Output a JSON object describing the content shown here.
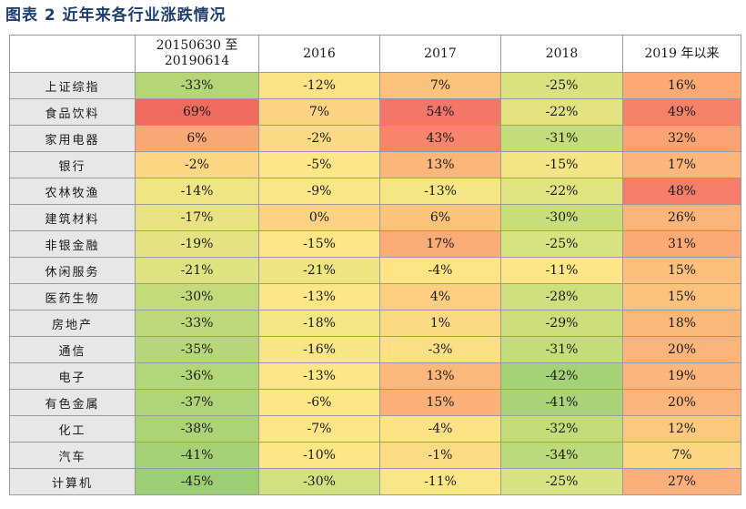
{
  "title": "图表 2  近年来各行业涨跌情况",
  "chart_data": {
    "type": "table",
    "columns": [
      "20150630 至 20190614",
      "2016",
      "2017",
      "2018",
      "2019 年以来"
    ],
    "rows": [
      {
        "name": "上证综指",
        "values": [
          "-33%",
          "-12%",
          "7%",
          "-25%",
          "16%"
        ],
        "colors": [
          "#b5d676",
          "#fbe385",
          "#fcc27b",
          "#d9e27f",
          "#fca974"
        ]
      },
      {
        "name": "食品饮料",
        "values": [
          "69%",
          "7%",
          "54%",
          "-22%",
          "49%"
        ],
        "colors": [
          "#f06a60",
          "#fcd383",
          "#f4766a",
          "#e3e281",
          "#f4826a"
        ]
      },
      {
        "name": "家用电器",
        "values": [
          "6%",
          "-2%",
          "43%",
          "-31%",
          "32%"
        ],
        "colors": [
          "#f8a874",
          "#fcd985",
          "#f6856c",
          "#c4dc7a",
          "#faa271"
        ]
      },
      {
        "name": "银行",
        "values": [
          "-2%",
          "-5%",
          "13%",
          "-15%",
          "17%"
        ],
        "colors": [
          "#fcd783",
          "#fde685",
          "#fcb67a",
          "#f3e583",
          "#fcb57a"
        ]
      },
      {
        "name": "农林牧渔",
        "values": [
          "-14%",
          "-9%",
          "-13%",
          "-22%",
          "48%"
        ],
        "colors": [
          "#f0e584",
          "#fbe687",
          "#f5e684",
          "#e1e282",
          "#f57d6b"
        ]
      },
      {
        "name": "建筑材料",
        "values": [
          "-17%",
          "0%",
          "6%",
          "-30%",
          "26%"
        ],
        "colors": [
          "#e8e282",
          "#fcd282",
          "#fcc37d",
          "#c9dd7b",
          "#fcb47a"
        ]
      },
      {
        "name": "非银金融",
        "values": [
          "-19%",
          "-15%",
          "17%",
          "-25%",
          "31%"
        ],
        "colors": [
          "#e4e282",
          "#fee687",
          "#faac76",
          "#d9e280",
          "#fcaa75"
        ]
      },
      {
        "name": "休闲服务",
        "values": [
          "-21%",
          "-21%",
          "-4%",
          "-11%",
          "15%"
        ],
        "colors": [
          "#dee281",
          "#eee484",
          "#fde484",
          "#fce686",
          "#fcc07c"
        ]
      },
      {
        "name": "医药生物",
        "values": [
          "-30%",
          "-13%",
          "4%",
          "-28%",
          "15%"
        ],
        "colors": [
          "#c3dc7b",
          "#fce686",
          "#fcce81",
          "#cedf7d",
          "#fcc17c"
        ]
      },
      {
        "name": "房地产",
        "values": [
          "-33%",
          "-18%",
          "1%",
          "-29%",
          "18%"
        ],
        "colors": [
          "#bcd97a",
          "#f4e585",
          "#fcda84",
          "#ccde7c",
          "#fcb77a"
        ]
      },
      {
        "name": "通信",
        "values": [
          "-35%",
          "-16%",
          "-3%",
          "-31%",
          "20%"
        ],
        "colors": [
          "#b6d779",
          "#f7e686",
          "#fcde84",
          "#c5dc7b",
          "#fcb47a"
        ]
      },
      {
        "name": "电子",
        "values": [
          "-36%",
          "-13%",
          "13%",
          "-42%",
          "19%"
        ],
        "colors": [
          "#b3d678",
          "#fce686",
          "#fcb77a",
          "#a6d276",
          "#fcb57a"
        ]
      },
      {
        "name": "有色金属",
        "values": [
          "-37%",
          "-6%",
          "15%",
          "-41%",
          "20%"
        ],
        "colors": [
          "#b0d578",
          "#fde686",
          "#fbb078",
          "#a9d376",
          "#fcb47a"
        ]
      },
      {
        "name": "化工",
        "values": [
          "-38%",
          "-7%",
          "-4%",
          "-32%",
          "12%"
        ],
        "colors": [
          "#acd477",
          "#fde686",
          "#fde384",
          "#c2dc7a",
          "#fcc77e"
        ]
      },
      {
        "name": "汽车",
        "values": [
          "-41%",
          "-10%",
          "-1%",
          "-34%",
          "7%"
        ],
        "colors": [
          "#a6d276",
          "#fce686",
          "#fcdb84",
          "#bbda79",
          "#fcd683"
        ]
      },
      {
        "name": "计算机",
        "values": [
          "-45%",
          "-30%",
          "-11%",
          "-25%",
          "27%"
        ],
        "colors": [
          "#9cce74",
          "#d3e080",
          "#f9e686",
          "#d9e280",
          "#fcaf78"
        ]
      }
    ]
  }
}
